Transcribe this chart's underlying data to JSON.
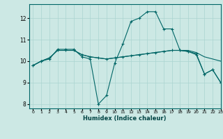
{
  "bg_color": "#cce8e4",
  "grid_color": "#aad4d0",
  "line_color": "#006666",
  "xlabel": "Humidex (Indice chaleur)",
  "xlim": [
    -0.5,
    23
  ],
  "ylim": [
    7.8,
    12.65
  ],
  "xticks": [
    0,
    1,
    2,
    3,
    4,
    5,
    6,
    7,
    8,
    9,
    10,
    11,
    12,
    13,
    14,
    15,
    16,
    17,
    18,
    19,
    20,
    21,
    22,
    23
  ],
  "yticks": [
    8,
    9,
    10,
    11,
    12
  ],
  "line1_x": [
    0,
    1,
    2,
    3,
    4,
    5,
    6,
    7,
    8,
    9,
    10,
    11,
    12,
    13,
    14,
    15,
    16,
    17,
    18,
    19,
    20,
    21,
    22,
    23
  ],
  "line1_y": [
    9.8,
    10.0,
    10.1,
    10.55,
    10.55,
    10.55,
    10.2,
    10.1,
    8.0,
    8.4,
    9.9,
    10.8,
    11.85,
    12.0,
    12.3,
    12.3,
    11.5,
    11.5,
    10.5,
    10.45,
    10.35,
    9.4,
    9.6,
    9.0
  ],
  "line2_x": [
    0,
    1,
    2,
    3,
    4,
    5,
    6,
    7,
    8,
    9,
    10,
    11,
    12,
    13,
    14,
    15,
    16,
    17,
    18,
    19,
    20,
    21,
    22,
    23
  ],
  "line2_y": [
    9.8,
    10.0,
    10.15,
    10.5,
    10.5,
    10.5,
    10.3,
    10.2,
    10.15,
    10.1,
    10.15,
    10.2,
    10.25,
    10.3,
    10.35,
    10.4,
    10.45,
    10.5,
    10.5,
    10.5,
    10.4,
    10.2,
    10.1,
    10.0
  ],
  "line3_x": [
    0,
    1,
    2,
    3,
    4,
    5,
    6,
    7,
    8,
    9,
    10,
    11,
    12,
    13,
    14,
    15,
    16,
    17,
    18,
    19,
    20,
    21,
    22,
    23
  ],
  "line3_y": [
    9.8,
    10.0,
    10.15,
    10.5,
    10.5,
    10.5,
    10.3,
    10.2,
    10.15,
    10.1,
    10.15,
    10.2,
    10.25,
    10.3,
    10.35,
    10.4,
    10.45,
    10.5,
    10.5,
    10.45,
    10.3,
    9.4,
    9.6,
    9.0
  ]
}
